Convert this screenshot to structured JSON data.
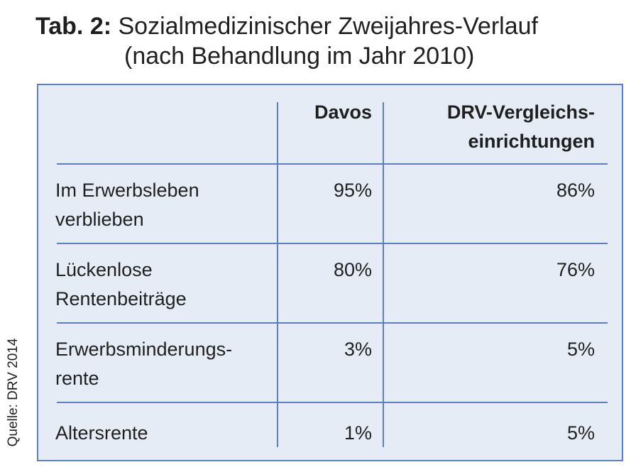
{
  "title": {
    "label": "Tab. 2:",
    "line1": "Sozialmedizinischer Zweijahres-Verlauf",
    "line2": "(nach Behandlung im Jahr 2010)"
  },
  "source": "Quelle: DRV 2014",
  "table": {
    "columns": [
      "",
      "Davos",
      "DRV-Vergleichs-\neinrichtungen"
    ],
    "rows": [
      {
        "label": "Im Erwerbsleben\nverblieben",
        "davos": "95%",
        "drv": "86%"
      },
      {
        "label": "Lückenlose\nRentenbeiträge",
        "davos": "80%",
        "drv": "76%"
      },
      {
        "label": "Erwerbsminderungs-\nrente",
        "davos": "3%",
        "drv": "5%"
      },
      {
        "label": "Altersrente",
        "davos": "1%",
        "drv": "5%"
      }
    ]
  },
  "colors": {
    "border": "#5b7fc0",
    "background": "#e6ecf6",
    "text": "#1f1f1f"
  }
}
